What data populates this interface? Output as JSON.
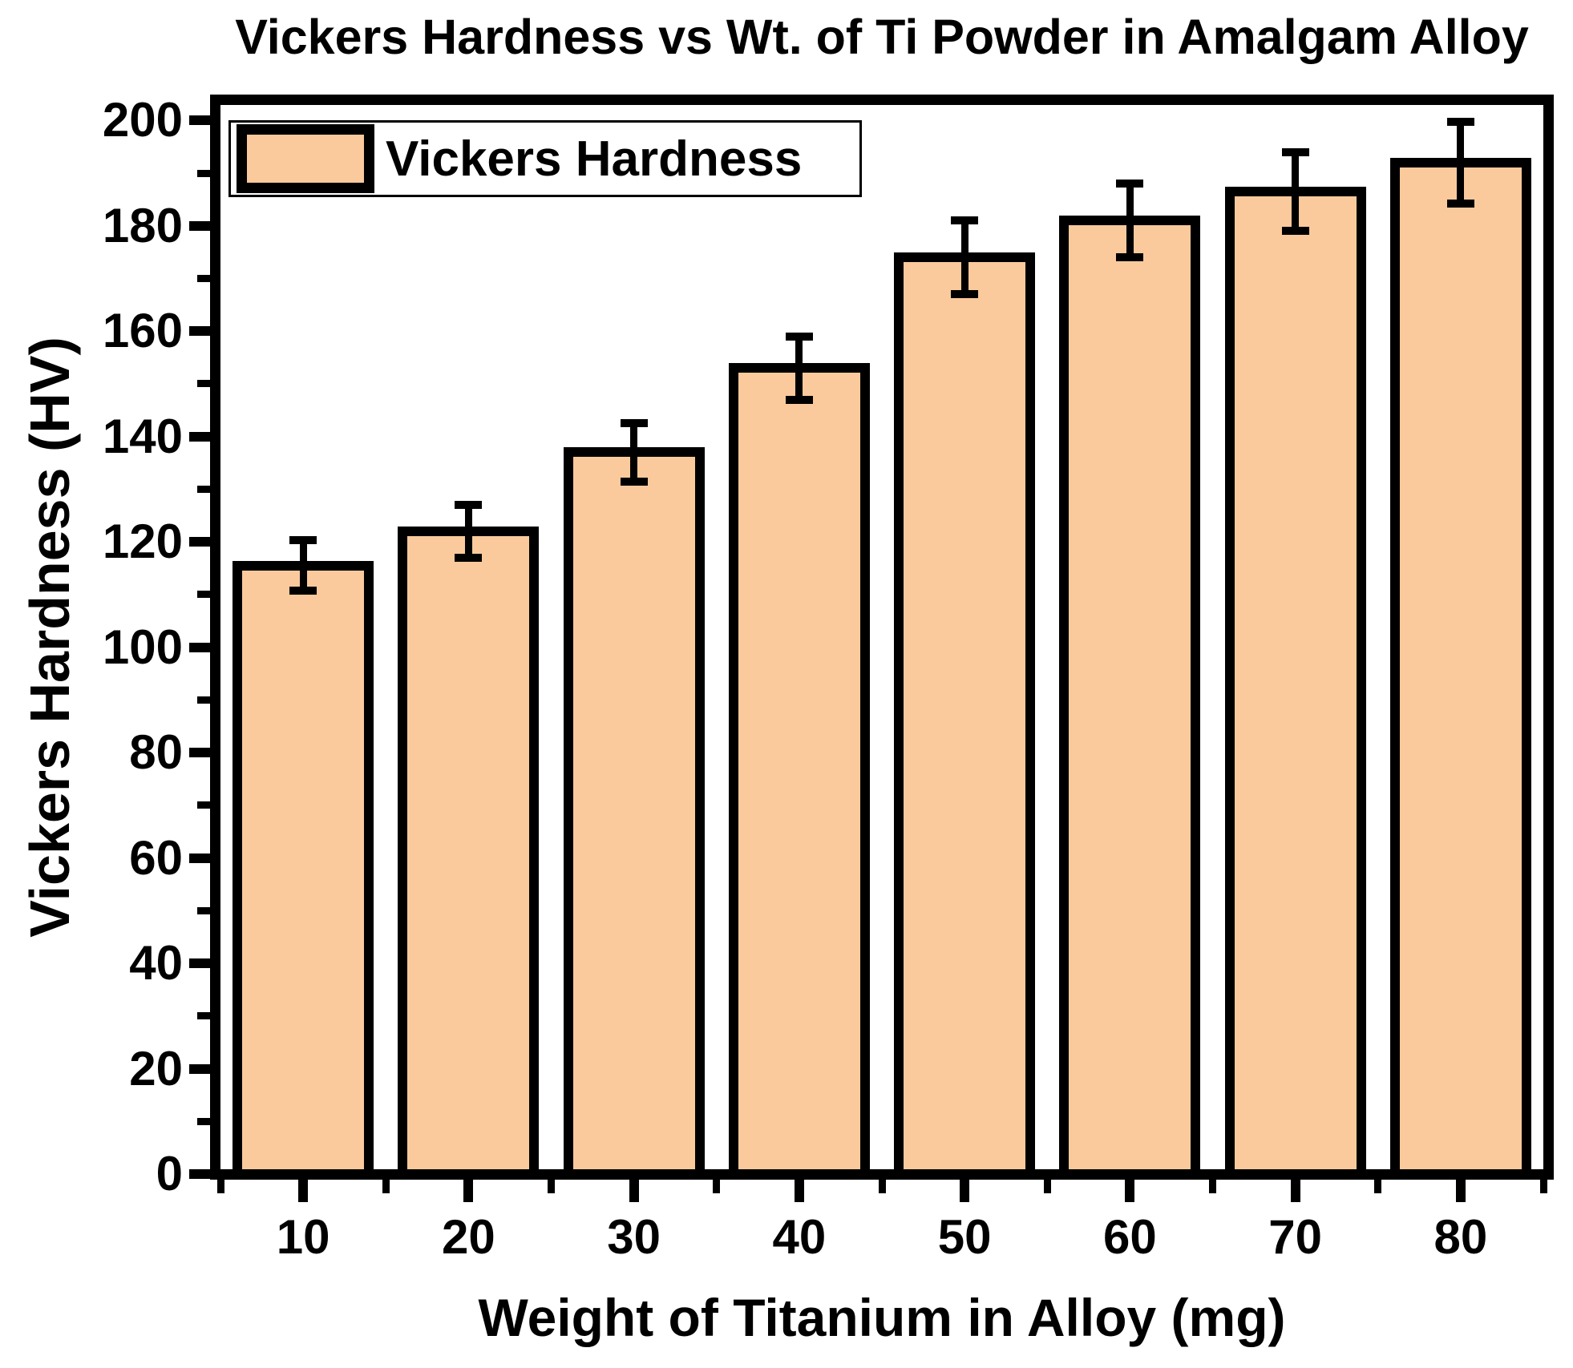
{
  "chart_data": {
    "type": "bar",
    "title": "Vickers Hardness vs Wt. of Ti Powder in Amalgam Alloy",
    "xlabel": "Weight of Titanium in Alloy (mg)",
    "ylabel": "Vickers Hardness (HV)",
    "legend": {
      "label": "Vickers Hardness",
      "position": "top-left"
    },
    "categories": [
      "10",
      "20",
      "30",
      "40",
      "50",
      "60",
      "70",
      "80"
    ],
    "series": [
      {
        "name": "Vickers Hardness",
        "values": [
          115.5,
          122,
          137,
          153,
          174,
          181,
          186.5,
          192
        ],
        "errors": [
          4.8,
          5,
          5.5,
          6,
          7,
          7,
          7.5,
          7.8
        ]
      }
    ],
    "ylim": [
      0,
      204
    ],
    "ytick_step": 20,
    "yminor_step": 10,
    "error_bars": true,
    "grid": false,
    "legend_visible": true,
    "colors": {
      "bar_fill": "#FACA9C",
      "bar_border": "#000000",
      "axis": "#000000",
      "background": "#FFFFFF"
    }
  }
}
